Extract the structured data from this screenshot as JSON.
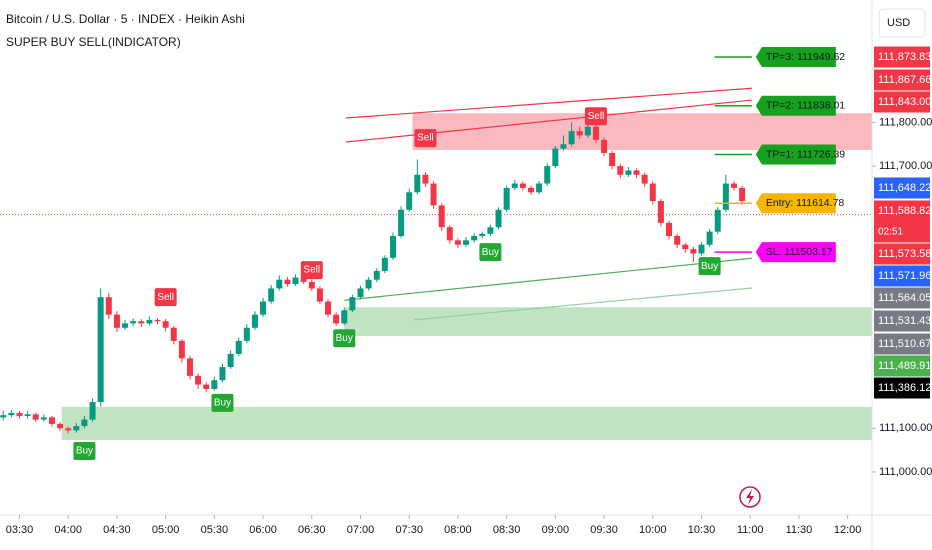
{
  "chart_data": {
    "type": "candlestick",
    "title": "Bitcoin / U.S. Dollar · 5 · INDEX · Heikin Ashi",
    "subtitle": "SUPER BUY SELL(INDICATOR)",
    "currency": "USD",
    "up_color": "#089981",
    "down_color": "#f23645",
    "xlim": [
      198,
      735
    ],
    "ylim": [
      110913,
      112080
    ],
    "xticks": [
      {
        "value": 210,
        "label": "03:30"
      },
      {
        "value": 240,
        "label": "04:00"
      },
      {
        "value": 270,
        "label": "04:30"
      },
      {
        "value": 300,
        "label": "05:00"
      },
      {
        "value": 330,
        "label": "05:30"
      },
      {
        "value": 360,
        "label": "06:00"
      },
      {
        "value": 390,
        "label": "06:30"
      },
      {
        "value": 420,
        "label": "07:00"
      },
      {
        "value": 450,
        "label": "07:30"
      },
      {
        "value": 480,
        "label": "08:00"
      },
      {
        "value": 510,
        "label": "08:30"
      },
      {
        "value": 540,
        "label": "09:00"
      },
      {
        "value": 570,
        "label": "09:30"
      },
      {
        "value": 600,
        "label": "10:00"
      },
      {
        "value": 630,
        "label": "10:30"
      },
      {
        "value": 660,
        "label": "11:00"
      },
      {
        "value": 690,
        "label": "11:30"
      },
      {
        "value": 720,
        "label": "12:00"
      }
    ],
    "yticks": [
      {
        "value": 111800,
        "label": "111,800.00"
      },
      {
        "value": 111700,
        "label": "111,700.00"
      },
      {
        "value": 111100,
        "label": "111,100.00"
      },
      {
        "value": 111000,
        "label": "111,000.00"
      }
    ],
    "x": [
      200,
      205,
      210,
      215,
      220,
      225,
      230,
      235,
      240,
      245,
      250,
      255,
      260,
      265,
      270,
      275,
      280,
      285,
      290,
      295,
      300,
      305,
      310,
      315,
      320,
      325,
      330,
      335,
      340,
      345,
      350,
      355,
      360,
      365,
      370,
      375,
      380,
      385,
      390,
      395,
      400,
      405,
      410,
      415,
      420,
      425,
      430,
      435,
      440,
      445,
      450,
      455,
      460,
      465,
      470,
      475,
      480,
      485,
      490,
      495,
      500,
      505,
      510,
      515,
      520,
      525,
      530,
      535,
      540,
      545,
      550,
      555,
      560,
      565,
      570,
      575,
      580,
      585,
      590,
      595,
      600,
      605,
      610,
      615,
      620,
      625,
      630,
      635,
      640,
      645,
      650,
      655
    ],
    "candles": [
      [
        111125,
        111140,
        111118,
        111130
      ],
      [
        111130,
        111142,
        111125,
        111135
      ],
      [
        111135,
        111140,
        111122,
        111128
      ],
      [
        111128,
        111140,
        111122,
        111132
      ],
      [
        111132,
        111136,
        111114,
        111120
      ],
      [
        111120,
        111132,
        111115,
        111125
      ],
      [
        111125,
        111128,
        111104,
        111110
      ],
      [
        111110,
        111114,
        111094,
        111100
      ],
      [
        111100,
        111104,
        111088,
        111095
      ],
      [
        111095,
        111112,
        111090,
        111105
      ],
      [
        111105,
        111128,
        111100,
        111120
      ],
      [
        111120,
        111168,
        111115,
        111160
      ],
      [
        111160,
        111420,
        111150,
        111400
      ],
      [
        111400,
        111410,
        111350,
        111360
      ],
      [
        111360,
        111368,
        111320,
        111330
      ],
      [
        111330,
        111348,
        111325,
        111340
      ],
      [
        111340,
        111352,
        111334,
        111345
      ],
      [
        111345,
        111350,
        111332,
        111340
      ],
      [
        111340,
        111356,
        111335,
        111348
      ],
      [
        111348,
        111352,
        111338,
        111345
      ],
      [
        111345,
        111350,
        111322,
        111330
      ],
      [
        111330,
        111334,
        111292,
        111300
      ],
      [
        111300,
        111304,
        111250,
        111260
      ],
      [
        111260,
        111266,
        111212,
        111220
      ],
      [
        111220,
        111226,
        111190,
        111200
      ],
      [
        111200,
        111205,
        111182,
        111190
      ],
      [
        111190,
        111218,
        111186,
        111210
      ],
      [
        111210,
        111248,
        111205,
        111240
      ],
      [
        111240,
        111278,
        111236,
        111270
      ],
      [
        111270,
        111308,
        111265,
        111300
      ],
      [
        111300,
        111338,
        111295,
        111330
      ],
      [
        111330,
        111368,
        111325,
        111360
      ],
      [
        111360,
        111398,
        111355,
        111390
      ],
      [
        111390,
        111428,
        111385,
        111420
      ],
      [
        111420,
        111450,
        111415,
        111440
      ],
      [
        111440,
        111446,
        111424,
        111430
      ],
      [
        111430,
        111452,
        111426,
        111445
      ],
      [
        111445,
        111450,
        111430,
        111435
      ],
      [
        111435,
        111440,
        111414,
        111420
      ],
      [
        111420,
        111425,
        111384,
        111390
      ],
      [
        111390,
        111395,
        111354,
        111360
      ],
      [
        111360,
        111365,
        111334,
        111340
      ],
      [
        111340,
        111376,
        111336,
        111370
      ],
      [
        111370,
        111406,
        111366,
        111400
      ],
      [
        111400,
        111426,
        111395,
        111420
      ],
      [
        111420,
        111446,
        111415,
        111440
      ],
      [
        111440,
        111466,
        111435,
        111460
      ],
      [
        111460,
        111496,
        111455,
        111490
      ],
      [
        111490,
        111548,
        111485,
        111540
      ],
      [
        111540,
        111608,
        111535,
        111600
      ],
      [
        111600,
        111648,
        111595,
        111640
      ],
      [
        111640,
        111715,
        111635,
        111680
      ],
      [
        111680,
        111686,
        111652,
        111660
      ],
      [
        111660,
        111665,
        111602,
        111610
      ],
      [
        111610,
        111615,
        111552,
        111560
      ],
      [
        111560,
        111565,
        111522,
        111530
      ],
      [
        111530,
        111535,
        111512,
        111520
      ],
      [
        111520,
        111538,
        111515,
        111530
      ],
      [
        111530,
        111546,
        111525,
        111540
      ],
      [
        111540,
        111550,
        111535,
        111545
      ],
      [
        111545,
        111566,
        111540,
        111560
      ],
      [
        111560,
        111606,
        111555,
        111600
      ],
      [
        111600,
        111656,
        111595,
        111650
      ],
      [
        111650,
        111668,
        111645,
        111660
      ],
      [
        111660,
        111665,
        111644,
        111650
      ],
      [
        111650,
        111655,
        111634,
        111640
      ],
      [
        111640,
        111666,
        111635,
        111660
      ],
      [
        111660,
        111706,
        111655,
        111700
      ],
      [
        111700,
        111746,
        111695,
        111740
      ],
      [
        111740,
        111770,
        111735,
        111750
      ],
      [
        111750,
        111800,
        111745,
        111780
      ],
      [
        111780,
        111790,
        111762,
        111770
      ],
      [
        111770,
        111805,
        111765,
        111790
      ],
      [
        111790,
        111795,
        111752,
        111760
      ],
      [
        111760,
        111765,
        111722,
        111730
      ],
      [
        111730,
        111735,
        111692,
        111700
      ],
      [
        111700,
        111705,
        111672,
        111680
      ],
      [
        111680,
        111698,
        111675,
        111690
      ],
      [
        111690,
        111695,
        111672,
        111680
      ],
      [
        111680,
        111685,
        111652,
        111660
      ],
      [
        111660,
        111665,
        111612,
        111620
      ],
      [
        111620,
        111625,
        111562,
        111570
      ],
      [
        111570,
        111575,
        111532,
        111540
      ],
      [
        111540,
        111545,
        111512,
        111520
      ],
      [
        111520,
        111525,
        111502,
        111510
      ],
      [
        111510,
        111515,
        111480,
        111500
      ],
      [
        111500,
        111526,
        111495,
        111520
      ],
      [
        111520,
        111556,
        111515,
        111550
      ],
      [
        111550,
        111606,
        111545,
        111600
      ],
      [
        111600,
        111680,
        111595,
        111660
      ],
      [
        111660,
        111665,
        111644,
        111650
      ],
      [
        111650,
        111655,
        111612,
        111620
      ]
    ],
    "zones": [
      {
        "x": [
          452,
          735
        ],
        "y": [
          111737,
          111821
        ],
        "color": "#f23645"
      },
      {
        "x": [
          410,
          735
        ],
        "y": [
          111311,
          111377
        ],
        "color": "#4caf50"
      },
      {
        "x": [
          236,
          735
        ],
        "y": [
          111073,
          111149
        ],
        "color": "#4caf50"
      }
    ],
    "trendlines": [
      {
        "x": [
          411,
          661
        ],
        "y": [
          111810,
          111878
        ],
        "color": "#f23645"
      },
      {
        "x": [
          411,
          661
        ],
        "y": [
          111755,
          111851
        ],
        "color": "#f23645"
      },
      {
        "x": [
          410,
          661
        ],
        "y": [
          111393,
          111489
        ],
        "color": "#4caf50"
      },
      {
        "x": [
          453,
          661
        ],
        "y": [
          111348,
          111421
        ],
        "color": "#8fd19e"
      }
    ],
    "signals": [
      {
        "label": "Buy",
        "x": 250,
        "y": 111048
      },
      {
        "label": "Sell",
        "x": 300,
        "y": 111400
      },
      {
        "label": "Buy",
        "x": 335,
        "y": 111158
      },
      {
        "label": "Sell",
        "x": 390,
        "y": 111462
      },
      {
        "label": "Buy",
        "x": 410,
        "y": 111306
      },
      {
        "label": "Sell",
        "x": 460,
        "y": 111764
      },
      {
        "label": "Buy",
        "x": 500,
        "y": 111503
      },
      {
        "label": "Sell",
        "x": 565,
        "y": 111814
      },
      {
        "label": "Buy",
        "x": 635,
        "y": 111471
      }
    ],
    "signal_colors": {
      "Buy": "#22a831",
      "Sell": "#f23645"
    },
    "levels": [
      {
        "label": "TP=3: 111949.62",
        "value": 111949.62,
        "color": "#16a21f"
      },
      {
        "label": "TP=2: 111838.01",
        "value": 111838.01,
        "color": "#16a21f"
      },
      {
        "label": "TP=1: 111726.39",
        "value": 111726.39,
        "color": "#16a21f"
      },
      {
        "label": "Entry: 111614.78",
        "value": 111614.78,
        "color": "#f7b500"
      },
      {
        "label": "SL: 111503.17",
        "value": 111503.17,
        "color": "#ff00ff"
      }
    ],
    "levels_x": [
      638,
      661
    ],
    "last_price": 111588.82,
    "countdown": "02:51",
    "price_labels": [
      {
        "value": 111873.83,
        "label": "111,873.83",
        "color": "#f23645"
      },
      {
        "value": 111867.66,
        "label": "111,867.66",
        "color": "#f23645"
      },
      {
        "value": 111843.0,
        "label": "111,843.00",
        "color": "#f23645"
      },
      {
        "value": 111648.22,
        "label": "111,648.22",
        "color": "#2962ff"
      },
      {
        "value": 111588.82,
        "label": "111,588.82",
        "color": "#f23645"
      },
      {
        "value": 111573.58,
        "label": "111,573.58",
        "color": "#f23645"
      },
      {
        "value": 111571.96,
        "label": "111,571.96",
        "color": "#2962ff"
      },
      {
        "value": 111564.05,
        "label": "111,564.05",
        "color": "#787b86"
      },
      {
        "value": 111531.43,
        "label": "111,531.43",
        "color": "#787b86"
      },
      {
        "value": 111510.67,
        "label": "111,510.67",
        "color": "#787b86"
      },
      {
        "value": 111489.91,
        "label": "111,489.91",
        "color": "#4caf50"
      },
      {
        "value": 111386.12,
        "label": "111,386.12",
        "color": "#000000"
      }
    ]
  }
}
